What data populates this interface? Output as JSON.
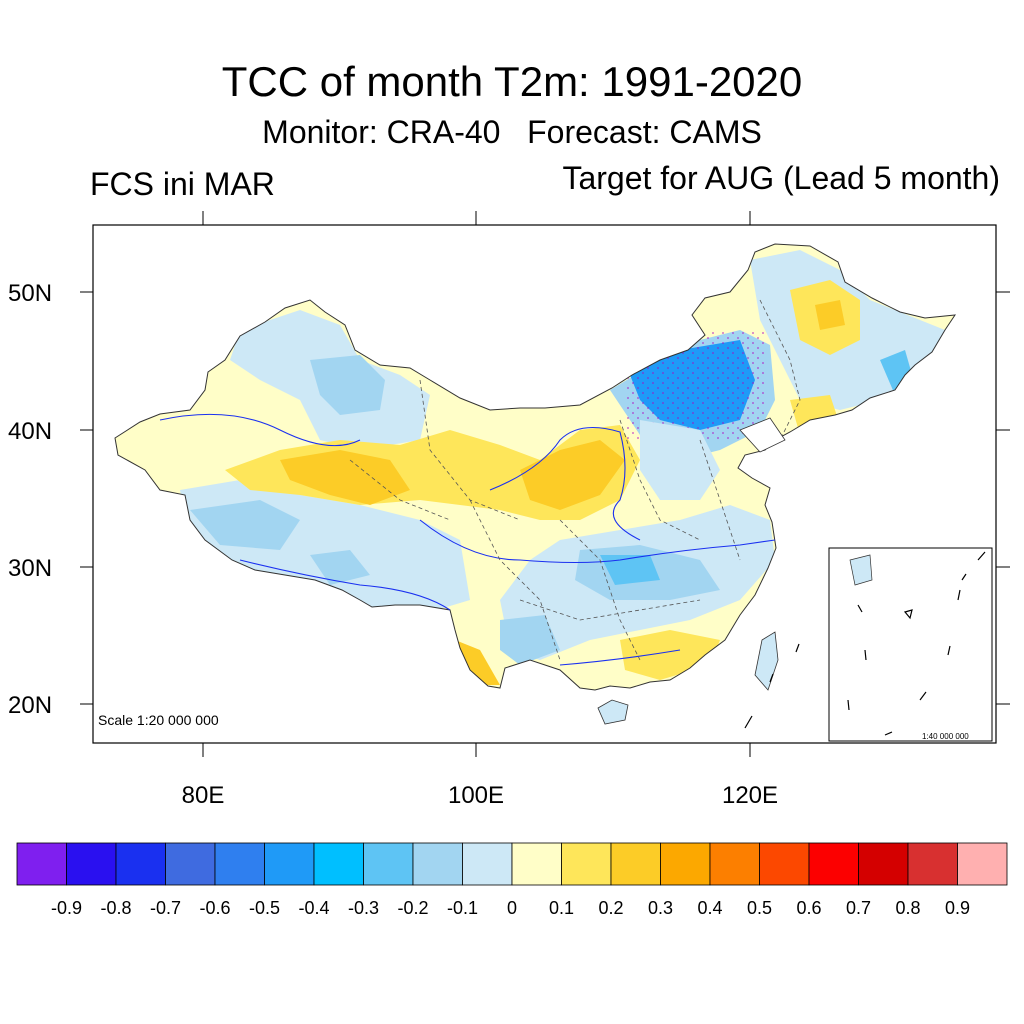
{
  "title": "TCC of month T2m: 1991-2020",
  "subtitle": "Monitor: CRA-40   Forecast: CAMS",
  "left_label": "FCS ini MAR",
  "right_label": "Target for AUG (Lead 5 month)",
  "scale_note": "Scale 1:20 000 000",
  "inset_scale_note": "1:40 000 000",
  "lat_labels": [
    "50N",
    "40N",
    "30N",
    "20N"
  ],
  "lon_labels": [
    "80E",
    "100E",
    "120E"
  ],
  "colorbar": {
    "colors": [
      "#7f1fef",
      "#2a10f0",
      "#1a30f0",
      "#3f6be0",
      "#2f7fef",
      "#1f9af7",
      "#00bfff",
      "#5ec4f4",
      "#a2d5f1",
      "#cde8f6",
      "#fffec8",
      "#fee65a",
      "#fccc27",
      "#fca800",
      "#fc7f00",
      "#fc4800",
      "#fc0000",
      "#d40000",
      "#d83030",
      "#ffb0b0"
    ],
    "labels": [
      "-0.9",
      "-0.8",
      "-0.7",
      "-0.6",
      "-0.5",
      "-0.4",
      "-0.3",
      "-0.2",
      "-0.1",
      "0",
      "0.1",
      "0.2",
      "0.3",
      "0.4",
      "0.5",
      "0.6",
      "0.7",
      "0.8",
      "0.9"
    ]
  }
}
